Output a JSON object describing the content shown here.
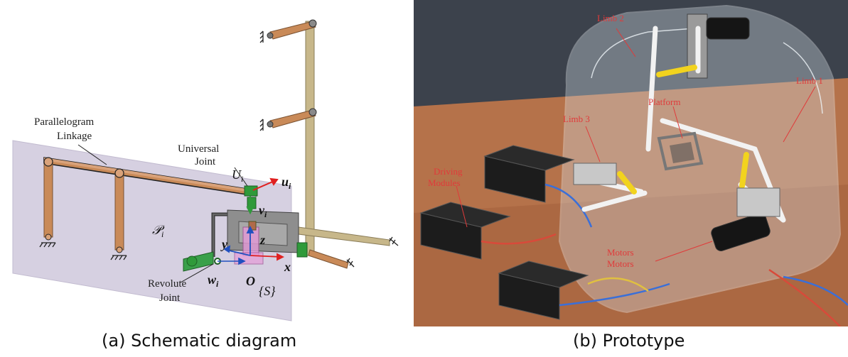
{
  "panel_a": {
    "caption": "(a) Schematic diagram",
    "labels": {
      "parallelogram_line1": "Parallelogram",
      "parallelogram_line2": "Linkage",
      "universal_line1": "Universal",
      "universal_line2": "Joint",
      "revolute_line1": "Revolute",
      "revolute_line2": "Joint",
      "plane": "𝒫",
      "plane_sub": "i",
      "U": "U",
      "U_sub": "i",
      "u": "u",
      "u_sub": "i",
      "v": "v",
      "v_sub": "i",
      "w": "w",
      "w_sub": "i",
      "x": "x",
      "y": "y",
      "z": "z",
      "O": "O",
      "S": "{S}"
    }
  },
  "panel_b": {
    "caption": "(b) Prototype",
    "labels": {
      "limb2": "Limb 2",
      "limb1": "Limb 1",
      "limb3": "Limb 3",
      "platform": "Platform",
      "driving_line1": "Driving",
      "driving_line2": "Modules",
      "motor_line1": "Motors",
      "motor_line2": "Motors"
    }
  },
  "colors": {
    "link_orange": "#c98a58",
    "link_tan": "#c7b78a",
    "joint_green": "#2f9a3a",
    "plane": "#cfc8dc",
    "axis_red": "#e02020",
    "platform_pink": "#e59ad8",
    "acrylic": "#d8e2ea",
    "table_wood": "#b5724a",
    "label_red": "#e03a3a",
    "yellow_link": "#f2d31e"
  }
}
